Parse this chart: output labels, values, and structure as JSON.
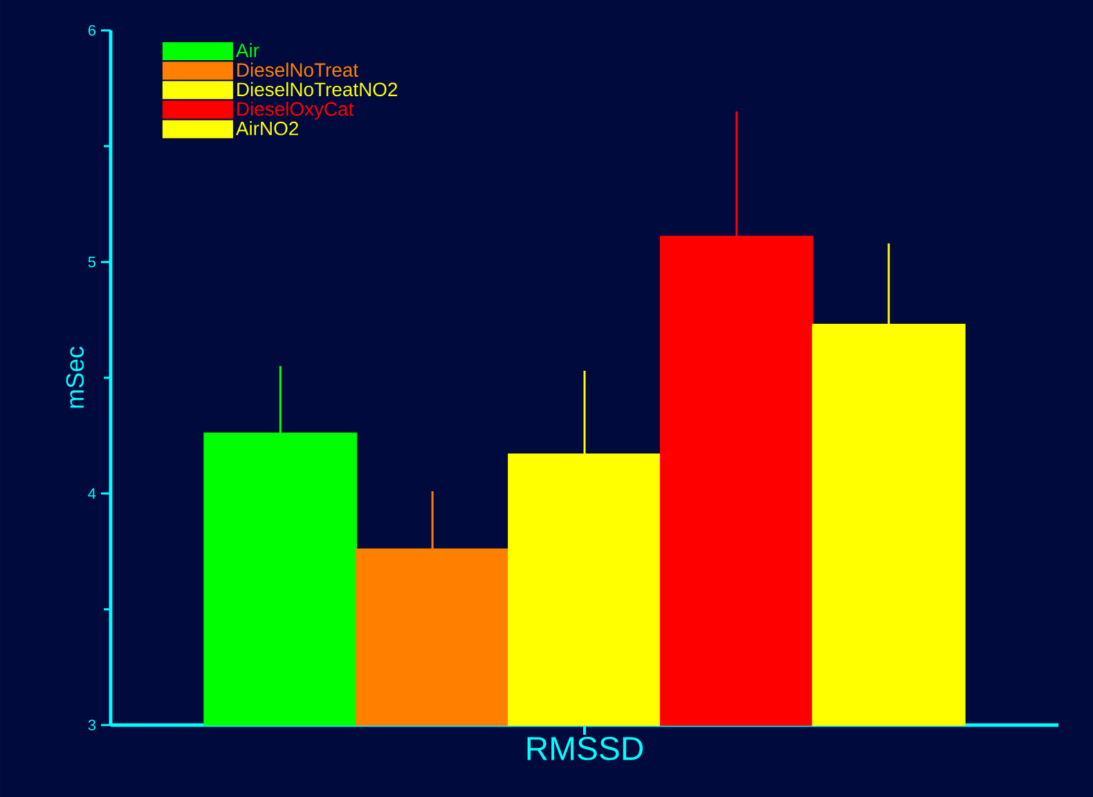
{
  "chart_data": {
    "type": "bar",
    "ylabel": "mSec",
    "categories": [
      "RMSSD"
    ],
    "series": [
      {
        "name": "Air",
        "color": "#00ff00",
        "values": [
          4.26
        ],
        "errors": [
          [
            4.26,
            4.55
          ]
        ]
      },
      {
        "name": "DieselNoTreat",
        "color": "#ff8000",
        "values": [
          3.76
        ],
        "errors": [
          [
            3.76,
            4.01
          ]
        ]
      },
      {
        "name": "DieselNoTreatNO2",
        "color": "#ffff00",
        "values": [
          4.17
        ],
        "errors": [
          [
            4.17,
            4.53
          ]
        ]
      },
      {
        "name": "DieselOxyCat",
        "color": "#ff0000",
        "values": [
          5.11
        ],
        "errors": [
          [
            5.11,
            5.65
          ]
        ]
      },
      {
        "name": "AirNO2",
        "color": "#ffff00",
        "values": [
          4.73
        ],
        "errors": [
          [
            4.73,
            5.08
          ]
        ]
      }
    ],
    "ylim": [
      3,
      6
    ],
    "yticks": [
      3,
      4,
      5,
      6
    ],
    "legend": "top left"
  }
}
